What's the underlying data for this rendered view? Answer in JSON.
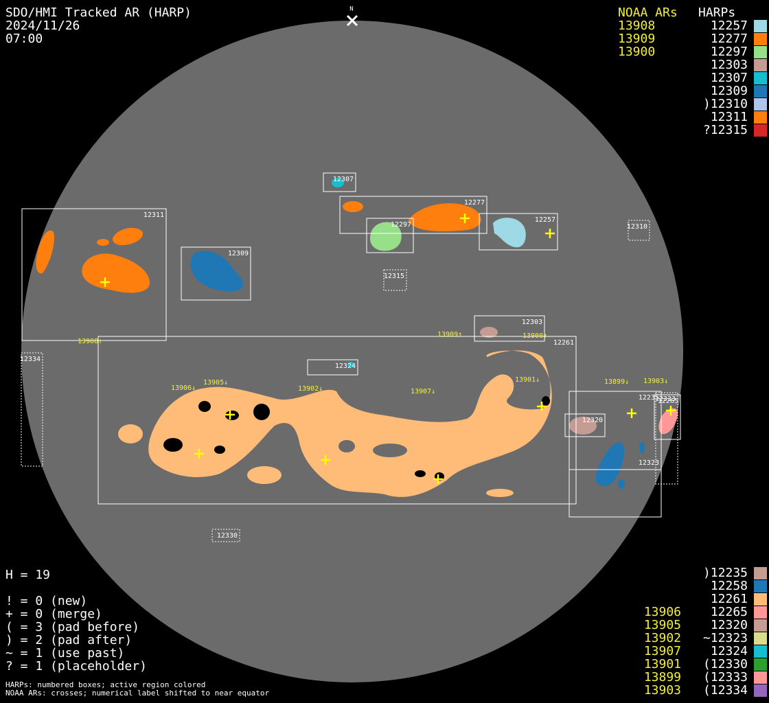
{
  "header": {
    "title": "SDO/HMI Tracked AR (HARP)",
    "date": "2024/11/26",
    "time": "07:00"
  },
  "north_label": "N",
  "legend_top": {
    "noaa_header": "NOAA ARs",
    "harp_header": "HARPs",
    "rows": [
      {
        "noaa": "13908",
        "harp": "12257",
        "color": "#9edae5"
      },
      {
        "noaa": "13909",
        "harp": "12277",
        "color": "#ff7f0e"
      },
      {
        "noaa": "13900",
        "harp": "12297",
        "color": "#98df8a"
      },
      {
        "harp": "12303",
        "color": "#c49c94"
      },
      {
        "harp": "12307",
        "color": "#17becf"
      },
      {
        "harp": "12309",
        "color": "#1f77b4"
      },
      {
        "harp": ")12310",
        "color": "#aec7e8"
      },
      {
        "harp": "12311",
        "color": "#ff7f0e"
      },
      {
        "harp": "?12315",
        "color": "#d62728"
      }
    ]
  },
  "legend_bottom": {
    "rows": [
      {
        "harp": ")12235",
        "color": "#c49c94"
      },
      {
        "harp": "12258",
        "color": "#1f77b4"
      },
      {
        "harp": "12261",
        "color": "#ffbb78"
      },
      {
        "noaa": "13906",
        "harp": "12265",
        "color": "#ff9896"
      },
      {
        "noaa": "13905",
        "harp": "12320",
        "color": "#c49c94"
      },
      {
        "noaa": "13902",
        "harp": "~12323",
        "color": "#dbdb8d"
      },
      {
        "noaa": "13907",
        "harp": "12324",
        "color": "#17becf"
      },
      {
        "noaa": "13901",
        "harp": "(12330",
        "color": "#2ca02c"
      },
      {
        "noaa": "13899",
        "harp": "(12333",
        "color": "#ff9896"
      },
      {
        "noaa": "13903",
        "harp": "(12334",
        "color": "#9467bd"
      }
    ]
  },
  "stats": [
    "H = 19",
    "! = 0 (new)",
    "+ = 0 (merge)",
    "( = 3 (pad before)",
    ") = 2 (pad after)",
    "~ = 1 (use past)",
    "? = 1 (placeholder)"
  ],
  "footer": [
    "HARPs: numbered boxes; active region colored",
    "NOAA ARs: crosses; numerical label shifted to near equator"
  ],
  "disk_boxes": [
    {
      "label": "12307",
      "style": "solid"
    },
    {
      "label": "12277",
      "style": "solid"
    },
    {
      "label": "12297",
      "style": "solid"
    },
    {
      "label": "12257",
      "style": "solid"
    },
    {
      "label": "12311",
      "style": "solid"
    },
    {
      "label": "12309",
      "style": "solid"
    },
    {
      "label": "12310",
      "style": "dashed"
    },
    {
      "label": "12315",
      "style": "dashed"
    },
    {
      "label": "12303",
      "style": "solid"
    },
    {
      "label": "12261",
      "style": "solid"
    },
    {
      "label": "12334",
      "style": "dashed"
    },
    {
      "label": "12324",
      "style": "solid"
    },
    {
      "label": "12320",
      "style": "solid"
    },
    {
      "label": "12235",
      "style": "solid"
    },
    {
      "label": "12323",
      "style": "solid"
    },
    {
      "label": "12265",
      "style": "solid"
    },
    {
      "label": "12333",
      "style": "dashed"
    },
    {
      "label": "12330",
      "style": "dashed"
    }
  ],
  "noaa_labels": [
    "13908↑",
    "13909↑",
    "13900↑",
    "13906↓",
    "13905↓",
    "13902↓",
    "13907↓",
    "13901↓",
    "13899↓",
    "13903↓"
  ]
}
